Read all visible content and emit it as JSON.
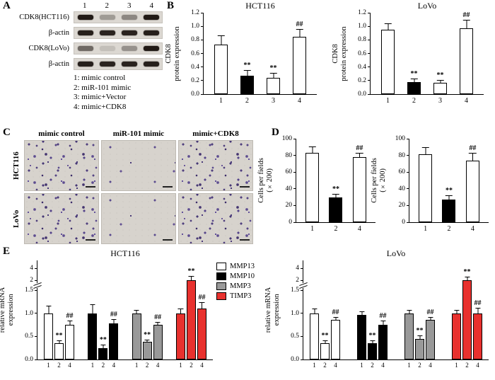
{
  "panels": {
    "A": {
      "label": "A",
      "lane_numbers": [
        "1",
        "2",
        "3",
        "4"
      ],
      "blot_rows": [
        {
          "label": "CDK8(HCT116)",
          "bands": [
            0.95,
            0.3,
            0.4,
            0.95
          ]
        },
        {
          "label": "β-actin",
          "bands": [
            0.92,
            0.9,
            0.9,
            0.92
          ]
        },
        {
          "label": "CDK8(LoVo)",
          "bands": [
            0.55,
            0.12,
            0.35,
            0.95
          ]
        },
        {
          "label": "β-actin",
          "bands": [
            0.92,
            0.9,
            0.9,
            0.92
          ]
        }
      ],
      "legend": [
        "1: mimic control",
        "2: miR-101 mimic",
        "3: mimic+Vector",
        "4: mimic+CDK8"
      ]
    },
    "B": {
      "label": "B"
    },
    "C": {
      "label": "C",
      "col_headers": [
        "mimic control",
        "miR-101 mimic",
        "mimic+CDK8"
      ],
      "row_labels": [
        "HCT116",
        "LoVo"
      ],
      "cells": [
        {
          "row": "HCT116",
          "col": "mimic control",
          "density": "dense"
        },
        {
          "row": "HCT116",
          "col": "miR-101 mimic",
          "density": "sparse"
        },
        {
          "row": "HCT116",
          "col": "mimic+CDK8",
          "density": "dense"
        },
        {
          "row": "LoVo",
          "col": "mimic control",
          "density": "dense"
        },
        {
          "row": "LoVo",
          "col": "miR-101 mimic",
          "density": "sparse"
        },
        {
          "row": "LoVo",
          "col": "mimic+CDK8",
          "density": "dense"
        }
      ]
    },
    "D": {
      "label": "D"
    },
    "E": {
      "label": "E",
      "legend": [
        {
          "name": "MMP13",
          "color": "#ffffff"
        },
        {
          "name": "MMP10",
          "color": "#000000"
        },
        {
          "name": "MMP3",
          "color": "#999999"
        },
        {
          "name": "TIMP3",
          "color": "#e8312e"
        }
      ]
    }
  },
  "chart_data": [
    {
      "id": "B-HCT116",
      "type": "bar",
      "title": "HCT116",
      "ylabel": "CDK8\nprotein expression",
      "categories": [
        "1",
        "2",
        "3",
        "4"
      ],
      "values": [
        0.73,
        0.27,
        0.24,
        0.85
      ],
      "errors": [
        0.13,
        0.07,
        0.06,
        0.1
      ],
      "colors": [
        "#ffffff",
        "#000000",
        "#ffffff",
        "#ffffff"
      ],
      "annotations": [
        "",
        "**",
        "**",
        "##"
      ],
      "ylim": [
        0,
        1.2
      ],
      "yticks": [
        "0.0",
        "0.2",
        "0.4",
        "0.6",
        "0.8",
        "1.0",
        "1.2"
      ]
    },
    {
      "id": "B-LoVo",
      "type": "bar",
      "title": "LoVo",
      "ylabel": "CDK8\nprotein expression",
      "categories": [
        "1",
        "2",
        "3",
        "4"
      ],
      "values": [
        0.95,
        0.18,
        0.17,
        0.97
      ],
      "errors": [
        0.08,
        0.04,
        0.03,
        0.12
      ],
      "colors": [
        "#ffffff",
        "#000000",
        "#ffffff",
        "#ffffff"
      ],
      "annotations": [
        "",
        "**",
        "**",
        "##"
      ],
      "ylim": [
        0,
        1.2
      ],
      "yticks": [
        "0.0",
        "0.2",
        "0.4",
        "0.6",
        "0.8",
        "1.0",
        "1.2"
      ]
    },
    {
      "id": "D-HCT116",
      "type": "bar",
      "title": "",
      "ylabel": "Cells per fields\n(×200)",
      "categories": [
        "1",
        "2",
        "4"
      ],
      "values": [
        83,
        30,
        78
      ],
      "errors": [
        7,
        3,
        4
      ],
      "colors": [
        "#ffffff",
        "#000000",
        "#ffffff"
      ],
      "annotations": [
        "",
        "**",
        "##"
      ],
      "ylim": [
        0,
        100
      ],
      "yticks": [
        "0",
        "20",
        "40",
        "60",
        "80",
        "100"
      ]
    },
    {
      "id": "D-LoVo",
      "type": "bar",
      "title": "",
      "ylabel": "Cells per fields\n(×200)",
      "categories": [
        "1",
        "2",
        "4"
      ],
      "values": [
        81,
        27,
        74
      ],
      "errors": [
        8,
        4,
        8
      ],
      "colors": [
        "#ffffff",
        "#000000",
        "#ffffff"
      ],
      "annotations": [
        "",
        "**",
        "##"
      ],
      "ylim": [
        0,
        100
      ],
      "yticks": [
        "0",
        "20",
        "40",
        "60",
        "80",
        "100"
      ]
    },
    {
      "id": "E-HCT116",
      "type": "grouped-bar",
      "title": "HCT116",
      "ylabel": "relative mRNA\nexpression",
      "bar_labels": [
        "1",
        "2",
        "4"
      ],
      "groups": [
        {
          "name": "MMP13",
          "color": "#ffffff",
          "values": [
            1.0,
            0.35,
            0.75
          ],
          "errors": [
            0.15,
            0.05,
            0.08
          ],
          "annotations": [
            "",
            "**",
            "##"
          ]
        },
        {
          "name": "MMP10",
          "color": "#000000",
          "values": [
            1.0,
            0.25,
            0.78
          ],
          "errors": [
            0.18,
            0.05,
            0.08
          ],
          "annotations": [
            "",
            "**",
            "##"
          ]
        },
        {
          "name": "MMP3",
          "color": "#999999",
          "values": [
            1.0,
            0.38,
            0.75
          ],
          "errors": [
            0.05,
            0.04,
            0.05
          ],
          "annotations": [
            "",
            "**",
            "##"
          ]
        },
        {
          "name": "TIMP3",
          "color": "#e8312e",
          "values": [
            1.0,
            2.0,
            1.1
          ],
          "errors": [
            0.08,
            0.6,
            0.12
          ],
          "annotations": [
            "",
            "**",
            "##"
          ]
        }
      ],
      "axis_break": true,
      "ylim": [
        0,
        4
      ],
      "yticks": [
        "0.0",
        "0.5",
        "1.0",
        "1.5",
        "2",
        "4"
      ]
    },
    {
      "id": "E-LoVo",
      "type": "grouped-bar",
      "title": "LoVo",
      "ylabel": "relative mRNA\nexpression",
      "bar_labels": [
        "1",
        "2",
        "4"
      ],
      "groups": [
        {
          "name": "MMP13",
          "color": "#ffffff",
          "values": [
            1.0,
            0.35,
            0.85
          ],
          "errors": [
            0.08,
            0.05,
            0.06
          ],
          "annotations": [
            "",
            "**",
            "##"
          ]
        },
        {
          "name": "MMP10",
          "color": "#000000",
          "values": [
            0.97,
            0.35,
            0.75
          ],
          "errors": [
            0.06,
            0.05,
            0.07
          ],
          "annotations": [
            "",
            "**",
            "##"
          ]
        },
        {
          "name": "MMP3",
          "color": "#999999",
          "values": [
            1.0,
            0.45,
            0.85
          ],
          "errors": [
            0.05,
            0.05,
            0.05
          ],
          "annotations": [
            "",
            "**",
            "##"
          ]
        },
        {
          "name": "TIMP3",
          "color": "#e8312e",
          "values": [
            1.0,
            2.0,
            1.0
          ],
          "errors": [
            0.06,
            0.5,
            0.1
          ],
          "annotations": [
            "",
            "**",
            "##"
          ]
        }
      ],
      "axis_break": true,
      "ylim": [
        0,
        4
      ],
      "yticks": [
        "0.0",
        "0.5",
        "1.0",
        "1.5",
        "2",
        "4"
      ]
    }
  ]
}
